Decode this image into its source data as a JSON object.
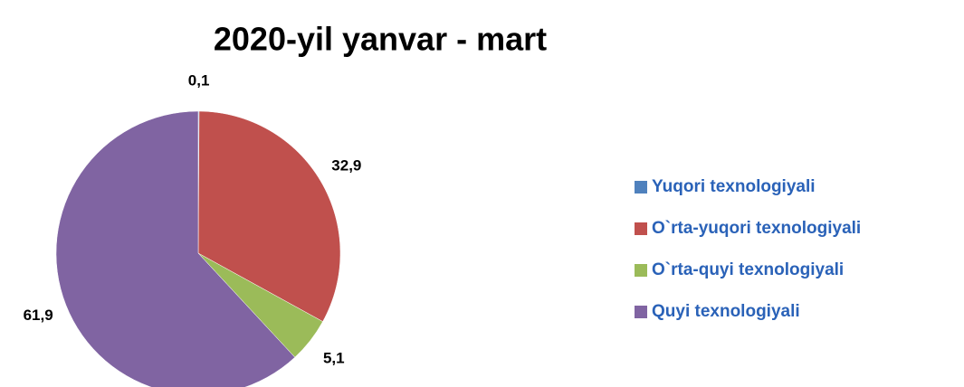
{
  "chart_data": {
    "type": "pie",
    "title": "2020-yil yanvar - mart",
    "categories": [
      "Yuqori texnologiyali",
      "O`rta-yuqori texnologiyali",
      "O`rta-quyi texnologiyali",
      "Quyi texnologiyali"
    ],
    "values": [
      0.1,
      32.9,
      5.1,
      61.9
    ],
    "value_labels": [
      "0,1",
      "32,9",
      "5,1",
      "61,9"
    ],
    "colors": [
      "#4f81bd",
      "#c0504d",
      "#9bbb59",
      "#8064a2"
    ],
    "legend": "right"
  }
}
